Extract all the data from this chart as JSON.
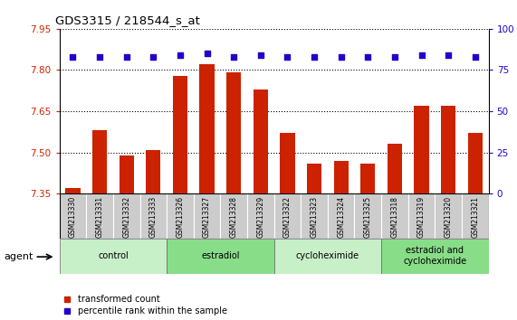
{
  "title": "GDS3315 / 218544_s_at",
  "samples": [
    "GSM213330",
    "GSM213331",
    "GSM213332",
    "GSM213333",
    "GSM213326",
    "GSM213327",
    "GSM213328",
    "GSM213329",
    "GSM213322",
    "GSM213323",
    "GSM213324",
    "GSM213325",
    "GSM213318",
    "GSM213319",
    "GSM213320",
    "GSM213321"
  ],
  "bar_values": [
    7.37,
    7.58,
    7.49,
    7.51,
    7.78,
    7.82,
    7.79,
    7.73,
    7.57,
    7.46,
    7.47,
    7.46,
    7.53,
    7.67,
    7.67,
    7.57
  ],
  "dot_values": [
    83,
    83,
    83,
    83,
    84,
    85,
    83,
    84,
    83,
    83,
    83,
    83,
    83,
    84,
    84,
    83
  ],
  "groups": [
    {
      "label": "control",
      "start": 0,
      "end": 4,
      "color": "#c8f0c8"
    },
    {
      "label": "estradiol",
      "start": 4,
      "end": 8,
      "color": "#88dd88"
    },
    {
      "label": "cycloheximide",
      "start": 8,
      "end": 12,
      "color": "#c8f0c8"
    },
    {
      "label": "estradiol and\ncycloheximide",
      "start": 12,
      "end": 16,
      "color": "#88dd88"
    }
  ],
  "ylim_left": [
    7.35,
    7.95
  ],
  "yticks_left": [
    7.35,
    7.5,
    7.65,
    7.8,
    7.95
  ],
  "ylim_right": [
    0,
    100
  ],
  "yticks_right": [
    0,
    25,
    50,
    75,
    100
  ],
  "bar_color": "#cc2200",
  "dot_color": "#2200cc",
  "bar_width": 0.55,
  "background_plot": "#ffffff",
  "background_fig": "#ffffff",
  "tick_label_color_left": "#cc2200",
  "tick_label_color_right": "#2200cc",
  "legend_bar_label": "transformed count",
  "legend_dot_label": "percentile rank within the sample",
  "agent_label": "agent"
}
